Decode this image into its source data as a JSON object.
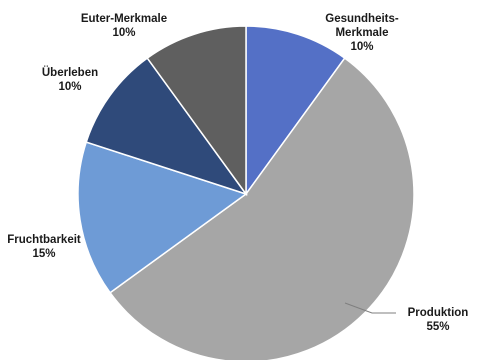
{
  "chart_data": {
    "type": "pie",
    "start_angle_deg": 0,
    "direction": "clockwise",
    "slices": [
      {
        "label_lines": [
          "Gesundheits-",
          "Merkmale"
        ],
        "value": 10,
        "value_label": "10%",
        "color": "#5470C6"
      },
      {
        "label_lines": [
          "Produktion"
        ],
        "value": 55,
        "value_label": "55%",
        "color": "#A6A6A6"
      },
      {
        "label_lines": [
          "Fruchtbarkeit"
        ],
        "value": 15,
        "value_label": "15%",
        "color": "#6E9BD6"
      },
      {
        "label_lines": [
          "Überleben"
        ],
        "value": 10,
        "value_label": "10%",
        "color": "#2F4A7A"
      },
      {
        "label_lines": [
          "Euter-Merkmale"
        ],
        "value": 10,
        "value_label": "10%",
        "color": "#5F5F5F"
      }
    ]
  }
}
